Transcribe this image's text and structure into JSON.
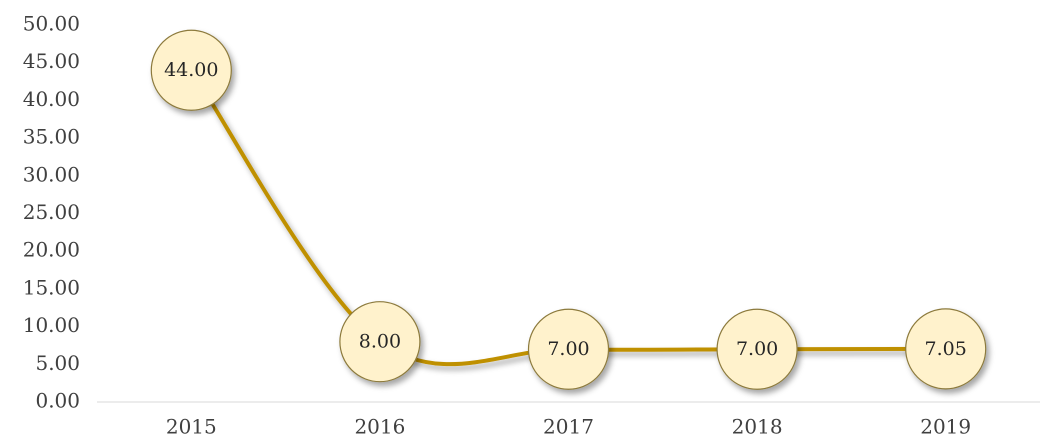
{
  "chart_data": {
    "type": "line",
    "categories": [
      "2015",
      "2016",
      "2017",
      "2018",
      "2019"
    ],
    "values": [
      44,
      8,
      7,
      7,
      7.05
    ],
    "value_labels": [
      "44.00",
      "8.00",
      "7.00",
      "7.00",
      "7.05"
    ],
    "color": "#bf9000",
    "marker_color": "#fff2cc",
    "smooth": true,
    "ylim": [
      0,
      50
    ],
    "yticks": [
      {
        "value": 0,
        "label": "0.00"
      },
      {
        "value": 5,
        "label": "5.00"
      },
      {
        "value": 10,
        "label": "10.00"
      },
      {
        "value": 15,
        "label": "15.00"
      },
      {
        "value": 20,
        "label": "20.00"
      },
      {
        "value": 25,
        "label": "25.00"
      },
      {
        "value": 30,
        "label": "30.00"
      },
      {
        "value": 35,
        "label": "35.00"
      },
      {
        "value": 40,
        "label": "40.00"
      },
      {
        "value": 45,
        "label": "45.00"
      },
      {
        "value": 50,
        "label": "50.00"
      }
    ],
    "grid": false
  }
}
